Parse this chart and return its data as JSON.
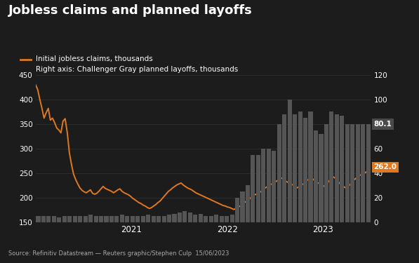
{
  "title": "Jobless claims and planned layoffs",
  "source_text": "Source: Refinitiv Datastream — Reuters graphic/Stephen Culp  15/06/2023",
  "legend_line": "Initial jobless claims, thousands",
  "legend_bar": "Right axis: Challenger Gray planned layoffs, thousands",
  "bg_color": "#1c1c1c",
  "bar_color": "#555555",
  "line_color": "#e07820",
  "text_color": "#ffffff",
  "grid_color": "#333333",
  "annotation_line_value": "262.0",
  "annotation_bar_value": "80.1",
  "left_ylim": [
    150,
    450
  ],
  "right_ylim": [
    0,
    120
  ],
  "left_yticks": [
    150,
    200,
    250,
    300,
    350,
    400,
    450
  ],
  "right_yticks": [
    0,
    20,
    40,
    60,
    80,
    100,
    120
  ],
  "xtick_labels": [
    "2021",
    "2022",
    "2023"
  ],
  "jobless_claims": [
    430,
    420,
    400,
    382,
    362,
    373,
    382,
    358,
    362,
    353,
    342,
    338,
    332,
    356,
    361,
    333,
    292,
    268,
    248,
    237,
    228,
    220,
    215,
    212,
    210,
    213,
    216,
    209,
    207,
    209,
    213,
    218,
    223,
    219,
    217,
    215,
    213,
    210,
    213,
    216,
    218,
    213,
    210,
    208,
    206,
    203,
    199,
    196,
    193,
    190,
    188,
    185,
    183,
    180,
    178,
    180,
    183,
    186,
    190,
    193,
    198,
    203,
    208,
    213,
    216,
    220,
    223,
    226,
    228,
    230,
    226,
    223,
    220,
    218,
    216,
    213,
    210,
    208,
    206,
    204,
    202,
    200,
    198,
    196,
    194,
    192,
    190,
    188,
    186,
    184,
    183,
    181,
    180,
    178,
    176,
    178,
    180,
    183,
    186,
    190,
    193,
    196,
    200,
    203,
    206,
    208,
    210,
    213,
    216,
    220,
    223,
    226,
    228,
    230,
    233,
    236,
    238,
    240,
    236,
    233,
    230,
    228,
    226,
    223,
    220,
    223,
    226,
    228,
    233,
    236,
    238,
    240,
    236,
    233,
    230,
    228,
    226,
    223,
    228,
    233,
    238,
    243,
    240,
    236,
    230,
    226,
    223,
    220,
    223,
    226,
    230,
    236,
    240,
    243,
    246,
    248,
    250,
    253,
    257,
    262
  ],
  "planned_layoffs_monthly": [
    5,
    5,
    5,
    5,
    4,
    5,
    5,
    5,
    5,
    5,
    6,
    5,
    5,
    5,
    5,
    5,
    6,
    5,
    5,
    5,
    5,
    6,
    5,
    5,
    5,
    6,
    7,
    8,
    9,
    8,
    6,
    7,
    5,
    5,
    6,
    5,
    5,
    6,
    20,
    25,
    30,
    55,
    55,
    60,
    60,
    58,
    80,
    88,
    100,
    88,
    90,
    85,
    90,
    75,
    72,
    80,
    90,
    88,
    87,
    80,
    80,
    80,
    80,
    80.1
  ],
  "n_weeks": 160,
  "n_weeks_total_period": 182,
  "weeks_per_year": 52
}
